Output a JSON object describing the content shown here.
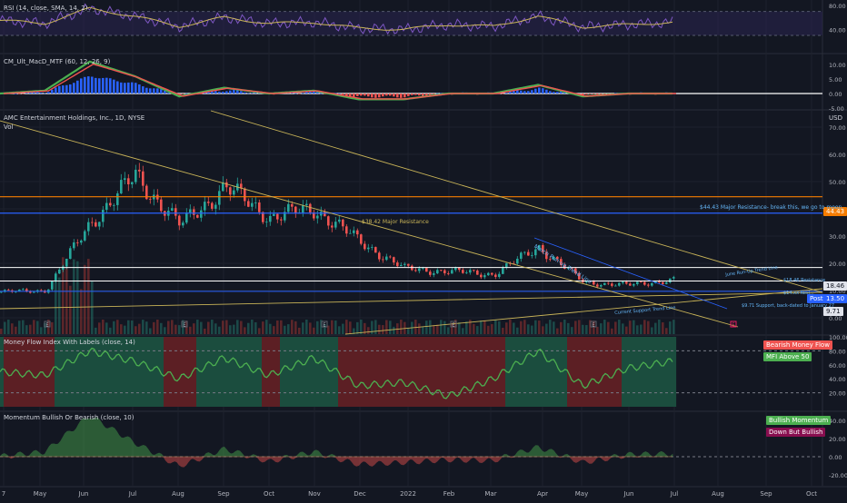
{
  "colors": {
    "background": "#131722",
    "grid": "#1e222d",
    "up": "#26a69a",
    "down": "#ef5350",
    "trend": "#c9b458",
    "orange": "#f57c00",
    "blue": "#2962ff",
    "white": "#ffffff",
    "rsiLine": "#7e57c2",
    "rsiBand": "#2a2450",
    "macdFast": "#4caf50",
    "macdSlow": "#ef5350",
    "mfiBull": "#1b4d3e",
    "mfiBear": "#5c1f24",
    "momUp": "#4caf50",
    "momDown": "#ef5350"
  },
  "panes": {
    "rsi": {
      "title": "RSI (14, close, SMA, 14, 2)",
      "ticks": [
        "80.00",
        "40.00"
      ]
    },
    "macd": {
      "title": "CM_Ult_MacD_MTF (60, 12, 26, 9)",
      "ticks": [
        "10.00",
        "5.00",
        "0.00",
        "-5.00"
      ]
    },
    "price": {
      "title": "AMC Entertainment Holdings, Inc., 1D, NYSE",
      "subtitle": "Vol",
      "currency": "USD",
      "ticks": [
        "70.00",
        "60.00",
        "50.00",
        "40.00",
        "30.00",
        "20.00",
        "10.00",
        "0.00"
      ]
    },
    "mfi": {
      "title": "Money Flow Index With Labels (close, 14)",
      "ticks": [
        "100.00",
        "80.00",
        "60.00",
        "40.00",
        "20.00"
      ],
      "legend": [
        "Bearish Money Flow",
        "MFI Above 50"
      ]
    },
    "momentum": {
      "title": "Momentum Bullish Or Bearish (close, 10)",
      "ticks": [
        "40.00",
        "20.00",
        "0.00",
        "-20.00"
      ],
      "legend": [
        "Bullish Momentum",
        "Down But Bullish"
      ]
    }
  },
  "annotations": {
    "resistance_44": "$44.43 Major Resistance- break this, we go to moon.",
    "resistance_38": "$38.42 Major Resistance",
    "march_trend": "March Run-up Trend Line",
    "june_trend": "June Run-Up Trend Line",
    "resistance_18": "$18.46 Resistance",
    "support_971": "$9.71 Support, back-dated to January 27",
    "current_support": "Current Support Trend Line",
    "resistance_14": "$14.xx Resi...",
    "earnings_marker": "E"
  },
  "price_badges": {
    "b44": "44.43",
    "b18": "18.46",
    "b14": "13.50",
    "b971": "9.71",
    "post": "Post"
  },
  "time_axis": [
    "7",
    "May",
    "Jun",
    "Jul",
    "Aug",
    "Sep",
    "Oct",
    "Nov",
    "Dec",
    "2022",
    "Feb",
    "Mar",
    "Apr",
    "May",
    "Jun",
    "Jul",
    "Aug",
    "Sep",
    "Oct"
  ],
  "chart_data": {
    "type": "line",
    "title": "AMC Entertainment Holdings, Inc., 1D, NYSE",
    "xlabel": "",
    "ylabel": "USD",
    "ylim": [
      0,
      75
    ],
    "grid": true,
    "x": [
      "Apr 2021",
      "May 2021",
      "Jun 2021",
      "Jul 2021",
      "Aug 2021",
      "Sep 2021",
      "Oct 2021",
      "Nov 2021",
      "Dec 2021",
      "Jan 2022",
      "Feb 2022",
      "Mar 2022",
      "Apr 2022",
      "May 2022",
      "Jun 2022",
      "Jul 2022"
    ],
    "series": [
      {
        "values": [
          9.5,
          10,
          35,
          52,
          34,
          48,
          37,
          40,
          28,
          18,
          17,
          16,
          26,
          13,
          12,
          14
        ]
      }
    ],
    "horizontal_levels": [
      44.43,
      38.42,
      18.46,
      13.5,
      9.71
    ],
    "rsi": [
      55,
      50,
      75,
      62,
      45,
      60,
      50,
      52,
      42,
      40,
      48,
      45,
      62,
      44,
      48,
      52
    ],
    "macd": [
      0,
      1,
      11,
      6,
      -1,
      2,
      0,
      1,
      -2,
      -2,
      0,
      0,
      3,
      -1,
      0,
      0
    ],
    "mfi": [
      50,
      45,
      80,
      65,
      40,
      70,
      45,
      70,
      30,
      35,
      15,
      40,
      80,
      30,
      55,
      65
    ],
    "momentum": [
      0,
      5,
      45,
      15,
      -10,
      8,
      -5,
      5,
      -8,
      -6,
      -3,
      -4,
      10,
      -6,
      2,
      3
    ]
  }
}
